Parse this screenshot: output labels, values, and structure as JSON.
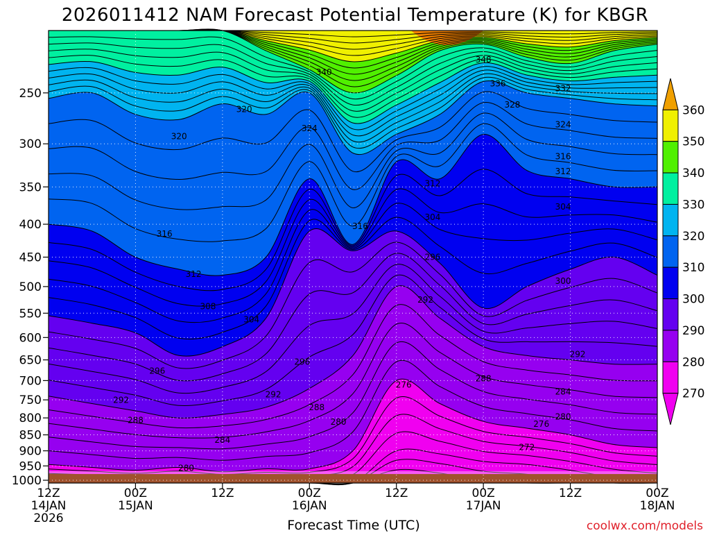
{
  "chart_data": {
    "type": "heatmap",
    "title": "2026011412 NAM Forecast Potential Temperature (K) for KBGR",
    "xlabel": "Forecast Time (UTC)",
    "ylabel": "",
    "credit": "coolwx.com/models",
    "x_ticks": [
      {
        "hour": 0,
        "line1": "12Z",
        "line2": "14JAN",
        "line3": "2026"
      },
      {
        "hour": 12,
        "line1": "00Z",
        "line2": "15JAN",
        "line3": ""
      },
      {
        "hour": 24,
        "line1": "12Z",
        "line2": "",
        "line3": ""
      },
      {
        "hour": 36,
        "line1": "00Z",
        "line2": "16JAN",
        "line3": ""
      },
      {
        "hour": 48,
        "line1": "12Z",
        "line2": "",
        "line3": ""
      },
      {
        "hour": 60,
        "line1": "00Z",
        "line2": "17JAN",
        "line3": ""
      },
      {
        "hour": 72,
        "line1": "12Z",
        "line2": "",
        "line3": ""
      },
      {
        "hour": 84,
        "line1": "00Z",
        "line2": "18JAN",
        "line3": ""
      }
    ],
    "x_range": [
      0,
      84
    ],
    "y_ticks": [
      250,
      300,
      350,
      400,
      450,
      500,
      550,
      600,
      650,
      700,
      750,
      800,
      850,
      900,
      950,
      1000
    ],
    "y_range_hpa": [
      200,
      1010
    ],
    "hours": [
      0,
      6,
      12,
      18,
      24,
      30,
      36,
      42,
      48,
      54,
      60,
      66,
      72,
      78,
      84
    ],
    "isentrope_step_k": 2,
    "isentrope_pressure_hpa": {
      "272": [
        1008,
        1008,
        1008,
        1008,
        1008,
        1008,
        1008,
        1008,
        900,
        910,
        935,
        945,
        965,
        990,
        1005
      ],
      "280": [
        945,
        955,
        965,
        955,
        970,
        960,
        960,
        900,
        700,
        760,
        810,
        830,
        850,
        880,
        890
      ],
      "290": [
        740,
        760,
        780,
        800,
        790,
        770,
        720,
        640,
        500,
        560,
        620,
        640,
        650,
        660,
        660
      ],
      "300": [
        555,
        570,
        590,
        640,
        620,
        560,
        410,
        440,
        410,
        460,
        540,
        500,
        470,
        450,
        480
      ],
      "310": [
        400,
        410,
        450,
        470,
        480,
        450,
        340,
        430,
        320,
        340,
        290,
        330,
        340,
        350,
        350
      ],
      "320": [
        255,
        250,
        270,
        275,
        260,
        270,
        250,
        310,
        290,
        270,
        240,
        250,
        255,
        260,
        262
      ],
      "340": [
        200,
        200,
        200,
        200,
        200,
        215,
        230,
        250,
        235,
        215,
        210,
        220,
        225,
        215,
        210
      ],
      "360": [
        200,
        200,
        200,
        200,
        200,
        200,
        200,
        200,
        200,
        200,
        200,
        200,
        200,
        200,
        200
      ]
    },
    "contour_labels": [
      {
        "text": "348",
        "hour": 60,
        "hpa": 222
      },
      {
        "text": "340",
        "hour": 38,
        "hpa": 232
      },
      {
        "text": "336",
        "hour": 62,
        "hpa": 242
      },
      {
        "text": "332",
        "hour": 71,
        "hpa": 246
      },
      {
        "text": "328",
        "hour": 64,
        "hpa": 261
      },
      {
        "text": "320",
        "hour": 27,
        "hpa": 265
      },
      {
        "text": "324",
        "hour": 71,
        "hpa": 280
      },
      {
        "text": "324",
        "hour": 36,
        "hpa": 284
      },
      {
        "text": "320",
        "hour": 18,
        "hpa": 292
      },
      {
        "text": "316",
        "hour": 71,
        "hpa": 314
      },
      {
        "text": "312",
        "hour": 71,
        "hpa": 331
      },
      {
        "text": "312",
        "hour": 53,
        "hpa": 346
      },
      {
        "text": "304",
        "hour": 71,
        "hpa": 376
      },
      {
        "text": "304",
        "hour": 53,
        "hpa": 390
      },
      {
        "text": "316",
        "hour": 43,
        "hpa": 403
      },
      {
        "text": "316",
        "hour": 16,
        "hpa": 414
      },
      {
        "text": "296",
        "hour": 53,
        "hpa": 450
      },
      {
        "text": "312",
        "hour": 20,
        "hpa": 478
      },
      {
        "text": "300",
        "hour": 71,
        "hpa": 490
      },
      {
        "text": "292",
        "hour": 52,
        "hpa": 524
      },
      {
        "text": "308",
        "hour": 22,
        "hpa": 537
      },
      {
        "text": "304",
        "hour": 28,
        "hpa": 563
      },
      {
        "text": "292",
        "hour": 73,
        "hpa": 637
      },
      {
        "text": "296",
        "hour": 35,
        "hpa": 655
      },
      {
        "text": "296",
        "hour": 15,
        "hpa": 676
      },
      {
        "text": "288",
        "hour": 60,
        "hpa": 695
      },
      {
        "text": "276",
        "hour": 49,
        "hpa": 711
      },
      {
        "text": "284",
        "hour": 71,
        "hpa": 729
      },
      {
        "text": "292",
        "hour": 31,
        "hpa": 736
      },
      {
        "text": "292",
        "hour": 10,
        "hpa": 751
      },
      {
        "text": "288",
        "hour": 37,
        "hpa": 770
      },
      {
        "text": "280",
        "hour": 71,
        "hpa": 797
      },
      {
        "text": "288",
        "hour": 12,
        "hpa": 807
      },
      {
        "text": "280",
        "hour": 40,
        "hpa": 812
      },
      {
        "text": "276",
        "hour": 68,
        "hpa": 818
      },
      {
        "text": "284",
        "hour": 24,
        "hpa": 866
      },
      {
        "text": "272",
        "hour": 66,
        "hpa": 889
      },
      {
        "text": "280",
        "hour": 19,
        "hpa": 958
      }
    ],
    "legend": {
      "placement": "right",
      "levels": [
        270,
        280,
        290,
        300,
        310,
        320,
        330,
        340,
        350,
        360
      ],
      "colors": [
        "#f000f0",
        "#9600f0",
        "#6400f0",
        "#0000f0",
        "#0064f0",
        "#00b4f0",
        "#00f0a0",
        "#50f000",
        "#f0f000",
        "#f0a000"
      ]
    },
    "ground_color": "#a0522d",
    "top_colors": [
      "#f0a000",
      "#f08000"
    ]
  }
}
